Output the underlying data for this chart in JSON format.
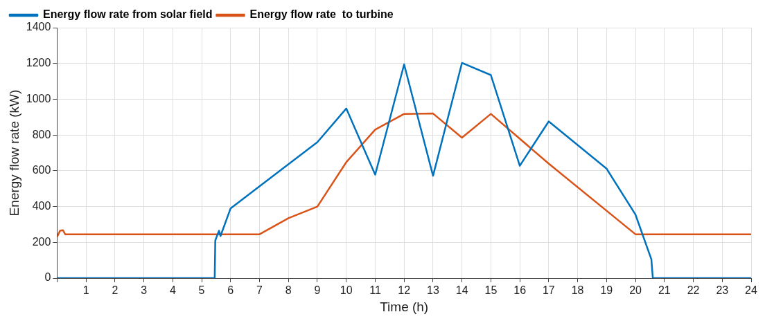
{
  "chart_data": {
    "type": "line",
    "xlabel": "Time (h)",
    "ylabel": "Energy flow rate (kW)",
    "xlim": [
      0,
      24
    ],
    "xticks": [
      {
        "value": 0,
        "label": null
      },
      1,
      2,
      3,
      4,
      5,
      6,
      7,
      8,
      9,
      10,
      11,
      12,
      13,
      14,
      15,
      16,
      17,
      18,
      19,
      20,
      21,
      22,
      23,
      24
    ],
    "ylim": [
      0,
      1400
    ],
    "yticks": [
      0,
      200,
      400,
      600,
      800,
      1000,
      1200,
      1400
    ],
    "grid": true,
    "legend": "top left",
    "marker": "none",
    "line_style": "solid",
    "series": [
      {
        "name": "Energy flow rate from solar field",
        "color": "#0072bd",
        "x": [
          0,
          5.45,
          5.47,
          5.55,
          5.6,
          5.65,
          6,
          9,
          10,
          11,
          12,
          13,
          14,
          15,
          16,
          17,
          19,
          20,
          20.55,
          20.6,
          24
        ],
        "values": [
          0,
          0,
          210,
          245,
          265,
          235,
          390,
          760,
          948,
          578,
          1195,
          572,
          1203,
          1135,
          628,
          876,
          612,
          355,
          105,
          0,
          0
        ]
      },
      {
        "name": "Energy flow rate  to turbine",
        "color": "#d95319",
        "x": [
          0,
          0.1,
          0.2,
          0.28,
          7,
          8,
          9,
          10,
          11,
          12,
          13,
          14,
          15,
          17,
          20,
          24
        ],
        "values": [
          230,
          265,
          268,
          245,
          245,
          335,
          400,
          648,
          830,
          918,
          920,
          785,
          918,
          640,
          245,
          245
        ]
      }
    ]
  }
}
